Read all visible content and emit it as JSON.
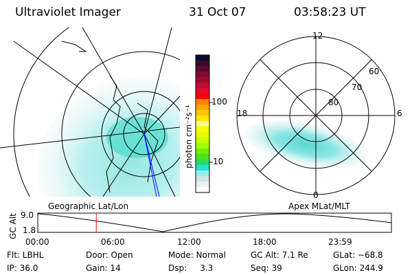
{
  "header": {
    "instrument": "Ultraviolet Imager",
    "date": "31 Oct 07",
    "time": "03:58:23 UT"
  },
  "colorbar": {
    "label": "photon cm⁻²s⁻¹",
    "ticks": [
      "100",
      "10"
    ],
    "colors": [
      "#0a0a30",
      "#3a0a2a",
      "#5a0a30",
      "#800a30",
      "#a00a30",
      "#c00a30",
      "#e00a30",
      "#ff0000",
      "#ff7f00",
      "#ffa500",
      "#ffc800",
      "#ffe600",
      "#ffff80",
      "#f5ff00",
      "#e6ff00",
      "#c8ff00",
      "#a0ff00",
      "#70f000",
      "#50e020",
      "#30d860",
      "#28e0d0",
      "#90f0f0",
      "#d0e4e4",
      "#e8f2ee",
      "#ffffff"
    ]
  },
  "polar": {
    "labels": {
      "noon": "12",
      "dusk": "18",
      "dawn": "6",
      "midnight": "0"
    },
    "lat_labels": [
      "60",
      "70",
      "80"
    ]
  },
  "plot": {
    "left_label": "Geographic Lat/Lon",
    "right_label": "Apex MLat/MLT",
    "ylabel": "GC Alt",
    "yticks": [
      "9.0",
      "1.8"
    ],
    "xticks": [
      "00:00",
      "06:00",
      "12:00",
      "18:00",
      "23:59"
    ],
    "current_hour": 3.97
  },
  "info": [
    [
      "Flt: LBHL",
      "Door: Open",
      "Mode: Normal",
      "GC Alt: 7.1 Re",
      "GLat: −68.8"
    ],
    [
      "IP: 36.0",
      "Gain: 14",
      "Dsp:     3.3",
      "Seq: 39",
      "GLon: 244.9"
    ]
  ]
}
